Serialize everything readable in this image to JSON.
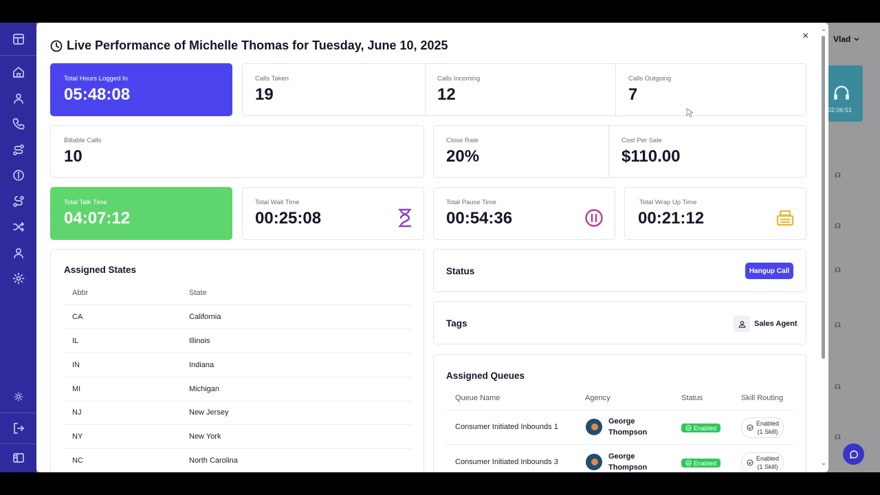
{
  "header": {
    "user_name": "Vlad"
  },
  "background_card": {
    "time": "02:06:51"
  },
  "modal": {
    "title": "Live Performance of Michelle Thomas for Tuesday, June 10, 2025",
    "close": "×"
  },
  "stats_row1": {
    "hours": {
      "label": "Total Hours Logged In",
      "value": "05:48:08"
    },
    "taken": {
      "label": "Calls Taken",
      "value": "19"
    },
    "incoming": {
      "label": "Calls Incoming",
      "value": "12"
    },
    "outgoing": {
      "label": "Calls Outgoing",
      "value": "7"
    }
  },
  "stats_row2": {
    "billable": {
      "label": "Billable Calls",
      "value": "10"
    },
    "close_rate": {
      "label": "Close Rate",
      "value": "20%"
    },
    "cost": {
      "label": "Cost Per Sale",
      "value": "$110.00"
    }
  },
  "stats_row3": {
    "talk": {
      "label": "Total Talk Time",
      "value": "04:07:12"
    },
    "wait": {
      "label": "Total Wait Time",
      "value": "00:25:08"
    },
    "pause": {
      "label": "Total Pause Time",
      "value": "00:54:36"
    },
    "wrap": {
      "label": "Total Wrap Up Time",
      "value": "00:21:12"
    }
  },
  "assigned_states": {
    "title": "Assigned States",
    "columns": [
      "Abbr",
      "State"
    ],
    "rows": [
      [
        "CA",
        "California"
      ],
      [
        "IL",
        "Illinois"
      ],
      [
        "IN",
        "Indiana"
      ],
      [
        "MI",
        "Michigan"
      ],
      [
        "NJ",
        "New Jersey"
      ],
      [
        "NY",
        "New York"
      ],
      [
        "NC",
        "North Carolina"
      ]
    ]
  },
  "status": {
    "title": "Status",
    "button": "Hangup Call"
  },
  "tags": {
    "title": "Tags",
    "tag": "Sales Agent"
  },
  "queues": {
    "title": "Assigned Queues",
    "columns": [
      "Queue Name",
      "Agency",
      "Status",
      "Skill Routing"
    ],
    "rows": [
      {
        "name": "Consumer Initiated Inbounds 1",
        "agency_first": "George",
        "agency_last": "Thompson",
        "status": "Enabled",
        "skill_1": "Enabled",
        "skill_2": "(1 Skill)"
      },
      {
        "name": "Consumer Initiated Inbounds 3",
        "agency_first": "George",
        "agency_last": "Thompson",
        "status": "Enabled",
        "skill_1": "Enabled",
        "skill_2": "(1 Skill)"
      }
    ]
  },
  "colors": {
    "accent": "#4b44ee",
    "talk": "#5fd56e",
    "sidebar": "#2f2a9e",
    "hourglass": "#8b3fc4",
    "pause": "#c23a8f",
    "wrap": "#e9b93a"
  }
}
